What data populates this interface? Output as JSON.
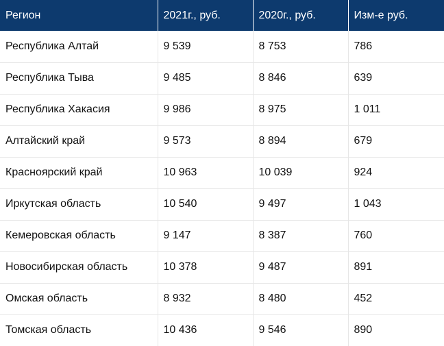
{
  "table": {
    "headers": [
      "Регион",
      "2021г., руб.",
      "2020г., руб.",
      "Изм-е руб."
    ],
    "rows": [
      [
        "Республика Алтай",
        "9 539",
        "8 753",
        "786"
      ],
      [
        "Республика Тыва",
        "9 485",
        "8 846",
        "639"
      ],
      [
        "Республика Хакасия",
        "9 986",
        "8 975",
        "1 011"
      ],
      [
        "Алтайский край",
        "9 573",
        "8 894",
        "679"
      ],
      [
        "Красноярский край",
        "10 963",
        "10 039",
        "924"
      ],
      [
        "Иркутская область",
        "10 540",
        "9 497",
        "1 043"
      ],
      [
        "Кемеровская область",
        "9 147",
        "8 387",
        "760"
      ],
      [
        "Новосибирская область",
        "10 378",
        "9 487",
        "891"
      ],
      [
        "Омская область",
        "8 932",
        "8 480",
        "452"
      ],
      [
        "Томская область",
        "10 436",
        "9 546",
        "890"
      ]
    ],
    "colors": {
      "header_bg": "#0d3a6e",
      "header_text": "#ffffff",
      "grid_line": "#e6e6e6"
    }
  }
}
